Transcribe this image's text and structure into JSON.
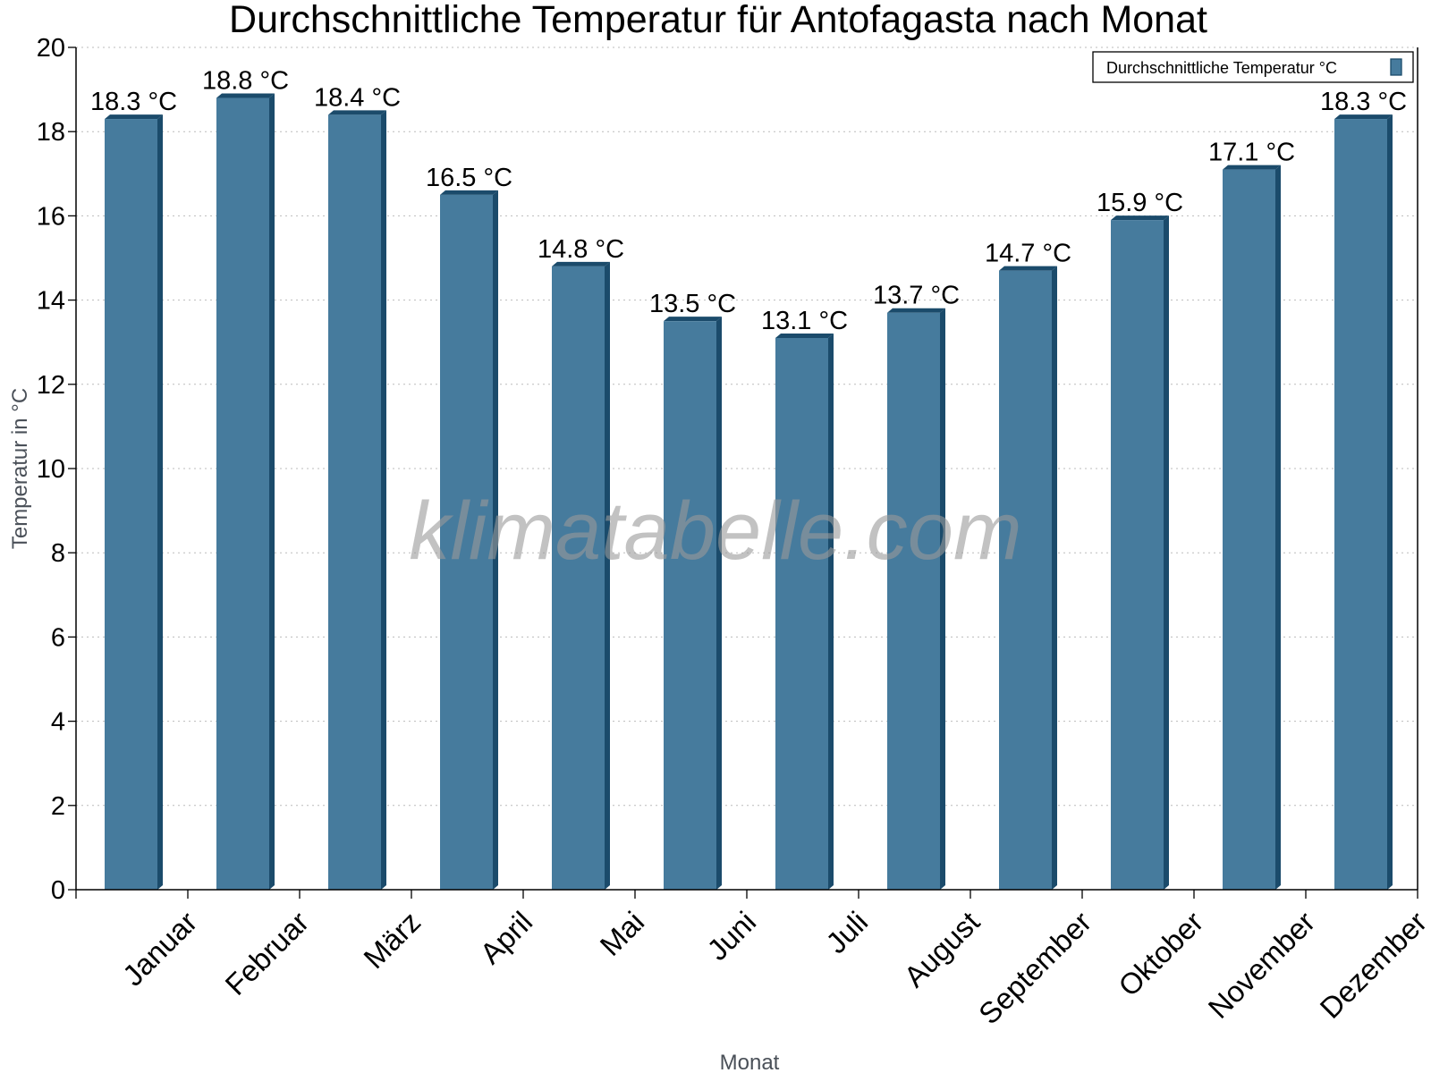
{
  "chart_data": {
    "type": "bar",
    "title": "Durchschnittliche Temperatur für Antofagasta nach Monat",
    "xlabel": "Monat",
    "ylabel": "Temperatur in °C",
    "ylim": [
      0,
      20
    ],
    "yticks": [
      0,
      2,
      4,
      6,
      8,
      10,
      12,
      14,
      16,
      18,
      20
    ],
    "grid": "horizontal dotted",
    "legend_placement": "top-right",
    "categories": [
      "Januar",
      "Februar",
      "März",
      "April",
      "Mai",
      "Juni",
      "Juli",
      "August",
      "September",
      "Oktober",
      "November",
      "Dezember"
    ],
    "series": [
      {
        "name": "Durchschnittliche Temperatur °C",
        "values": [
          18.3,
          18.8,
          18.4,
          16.5,
          14.8,
          13.5,
          13.1,
          13.7,
          14.7,
          15.9,
          17.1,
          18.3
        ],
        "data_labels": [
          "18.3 °C",
          "18.8 °C",
          "18.4 °C",
          "16.5 °C",
          "14.8 °C",
          "13.5 °C",
          "13.1 °C",
          "13.7 °C",
          "14.7 °C",
          "15.9 °C",
          "17.1 °C",
          "18.3 °C"
        ]
      }
    ],
    "colors": {
      "bar_front": "#467b9d",
      "bar_side": "#1b4b6b",
      "grid": "#bbbbbb",
      "watermark": "#999999"
    }
  },
  "watermark": "klimatabelle.com"
}
